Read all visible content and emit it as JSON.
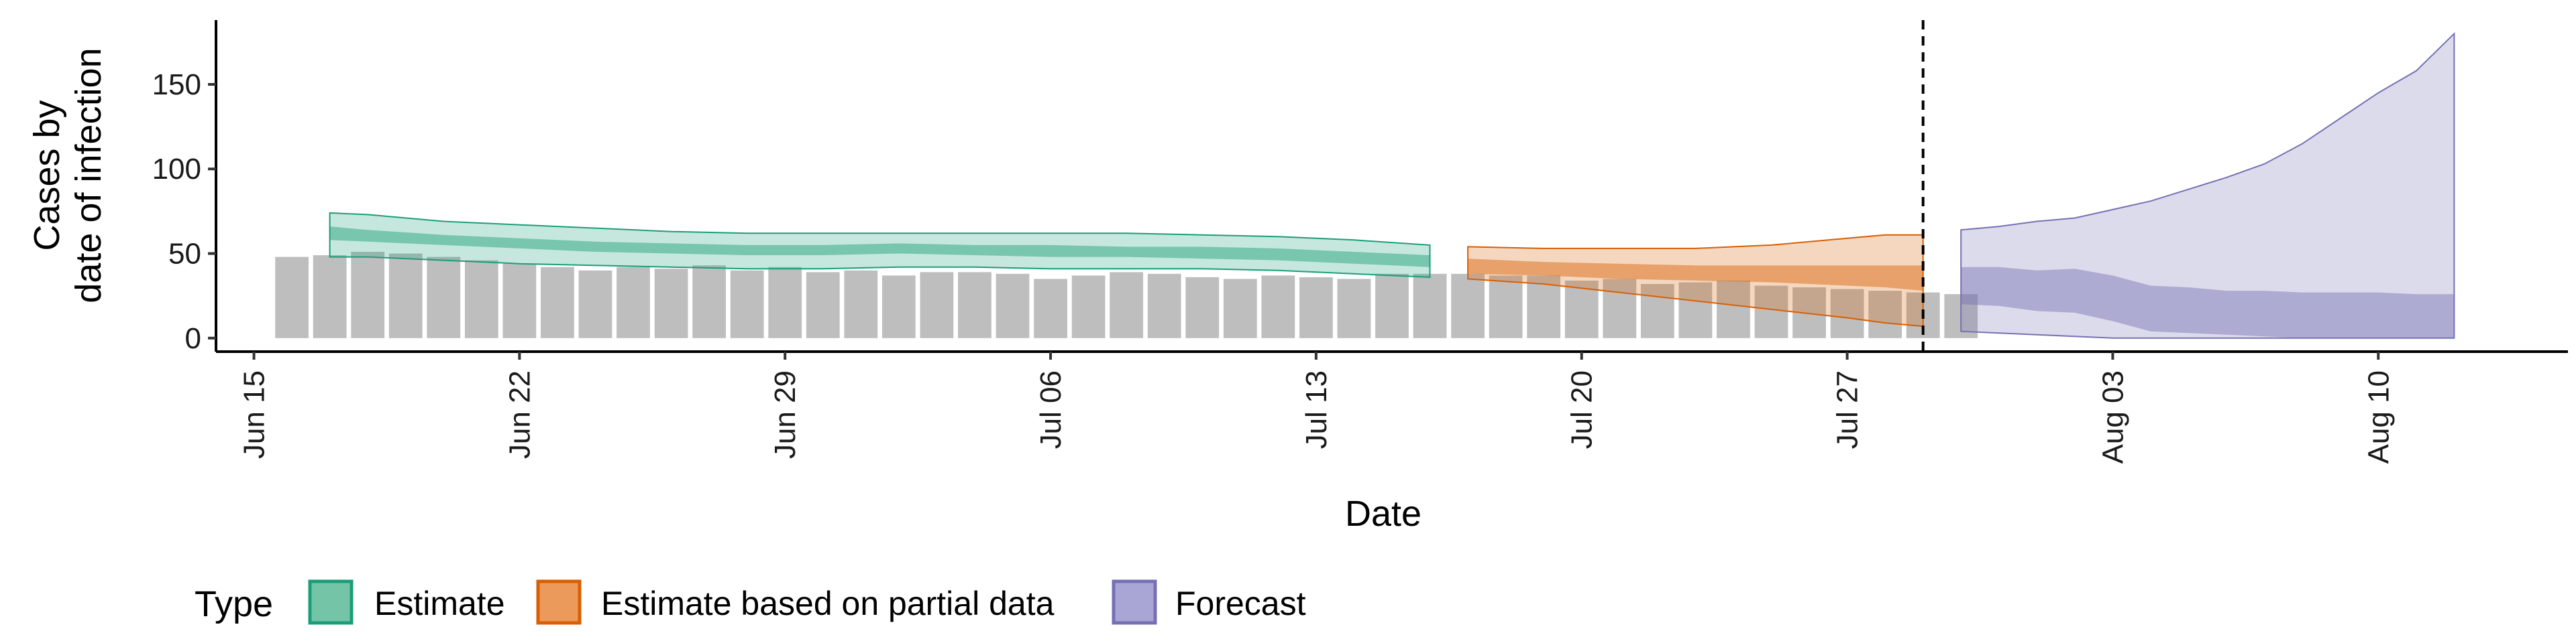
{
  "chart_data": {
    "type": "area",
    "xlabel": "Date",
    "ylabel_lines": [
      "Cases by",
      "date of infection"
    ],
    "x_domain": [
      "2020-06-14",
      "2020-08-15"
    ],
    "ylim": [
      -8,
      188
    ],
    "y_ticks": [
      0,
      50,
      100,
      150
    ],
    "x_ticks": [
      {
        "date": "2020-06-15",
        "label": "Jun 15"
      },
      {
        "date": "2020-06-22",
        "label": "Jun 22"
      },
      {
        "date": "2020-06-29",
        "label": "Jun 29"
      },
      {
        "date": "2020-07-06",
        "label": "Jul 06"
      },
      {
        "date": "2020-07-13",
        "label": "Jul 13"
      },
      {
        "date": "2020-07-20",
        "label": "Jul 20"
      },
      {
        "date": "2020-07-27",
        "label": "Jul 27"
      },
      {
        "date": "2020-08-03",
        "label": "Aug 03"
      },
      {
        "date": "2020-08-10",
        "label": "Aug 10"
      }
    ],
    "vline_date": "2020-07-29",
    "grid": false,
    "legend": {
      "title": "Type",
      "position": "bottom",
      "items": [
        {
          "key": "estimate",
          "label": "Estimate"
        },
        {
          "key": "partial",
          "label": "Estimate based on partial data"
        },
        {
          "key": "forecast",
          "label": "Forecast"
        }
      ]
    },
    "colors": {
      "estimate_fill": "#1b9e77",
      "partial_fill": "#d95f02",
      "forecast_fill": "#7570b3",
      "bars": "#bebebe"
    },
    "observed_cases": {
      "start_date": "2020-06-16",
      "values": [
        48,
        49,
        51,
        50,
        48,
        46,
        44,
        42,
        40,
        42,
        41,
        43,
        40,
        42,
        39,
        40,
        37,
        39,
        39,
        38,
        35,
        37,
        39,
        38,
        36,
        35,
        37,
        36,
        35,
        38,
        38,
        38,
        37,
        37,
        34,
        35,
        32,
        33,
        34,
        31,
        30,
        29,
        28,
        27,
        26
      ]
    },
    "series": [
      {
        "key": "estimate",
        "name": "Estimate",
        "dates": [
          "2020-06-17",
          "2020-06-18",
          "2020-06-20",
          "2020-06-22",
          "2020-06-24",
          "2020-06-26",
          "2020-06-28",
          "2020-06-30",
          "2020-07-02",
          "2020-07-04",
          "2020-07-06",
          "2020-07-08",
          "2020-07-10",
          "2020-07-12",
          "2020-07-14",
          "2020-07-16"
        ],
        "outer_lower": [
          48,
          48,
          46,
          44,
          43,
          42,
          41,
          41,
          42,
          42,
          41,
          41,
          41,
          40,
          38,
          36
        ],
        "inner_lower": [
          58,
          57,
          55,
          53,
          51,
          50,
          49,
          49,
          50,
          49,
          48,
          48,
          47,
          46,
          44,
          42
        ],
        "inner_upper": [
          66,
          64,
          61,
          59,
          57,
          56,
          55,
          55,
          56,
          55,
          55,
          54,
          54,
          53,
          51,
          49
        ],
        "outer_upper": [
          74,
          73,
          69,
          67,
          65,
          63,
          62,
          62,
          62,
          62,
          62,
          62,
          61,
          60,
          58,
          55
        ]
      },
      {
        "key": "partial",
        "name": "Estimate based on partial data",
        "dates": [
          "2020-07-17",
          "2020-07-19",
          "2020-07-21",
          "2020-07-23",
          "2020-07-25",
          "2020-07-27",
          "2020-07-28",
          "2020-07-29"
        ],
        "outer_lower": [
          35,
          32,
          27,
          22,
          17,
          12,
          9,
          7
        ],
        "inner_lower": [
          38,
          37,
          35,
          34,
          33,
          31,
          30,
          28
        ],
        "inner_upper": [
          47,
          45,
          44,
          43,
          43,
          43,
          43,
          43
        ],
        "outer_upper": [
          54,
          53,
          53,
          53,
          55,
          59,
          61,
          61
        ]
      },
      {
        "key": "forecast",
        "name": "Forecast",
        "dates": [
          "2020-07-30",
          "2020-07-31",
          "2020-08-01",
          "2020-08-02",
          "2020-08-03",
          "2020-08-04",
          "2020-08-05",
          "2020-08-06",
          "2020-08-07",
          "2020-08-08",
          "2020-08-09",
          "2020-08-10",
          "2020-08-11",
          "2020-08-12"
        ],
        "outer_lower": [
          4,
          3,
          2,
          1,
          0,
          0,
          0,
          0,
          0,
          0,
          0,
          0,
          0,
          0
        ],
        "inner_lower": [
          20,
          19,
          16,
          15,
          10,
          4,
          3,
          2,
          1,
          0,
          0,
          0,
          0,
          0
        ],
        "inner_upper": [
          42,
          42,
          40,
          41,
          37,
          31,
          30,
          28,
          28,
          27,
          27,
          27,
          26,
          26
        ],
        "outer_upper": [
          64,
          66,
          69,
          71,
          76,
          81,
          88,
          95,
          103,
          115,
          130,
          145,
          158,
          180
        ]
      }
    ]
  }
}
